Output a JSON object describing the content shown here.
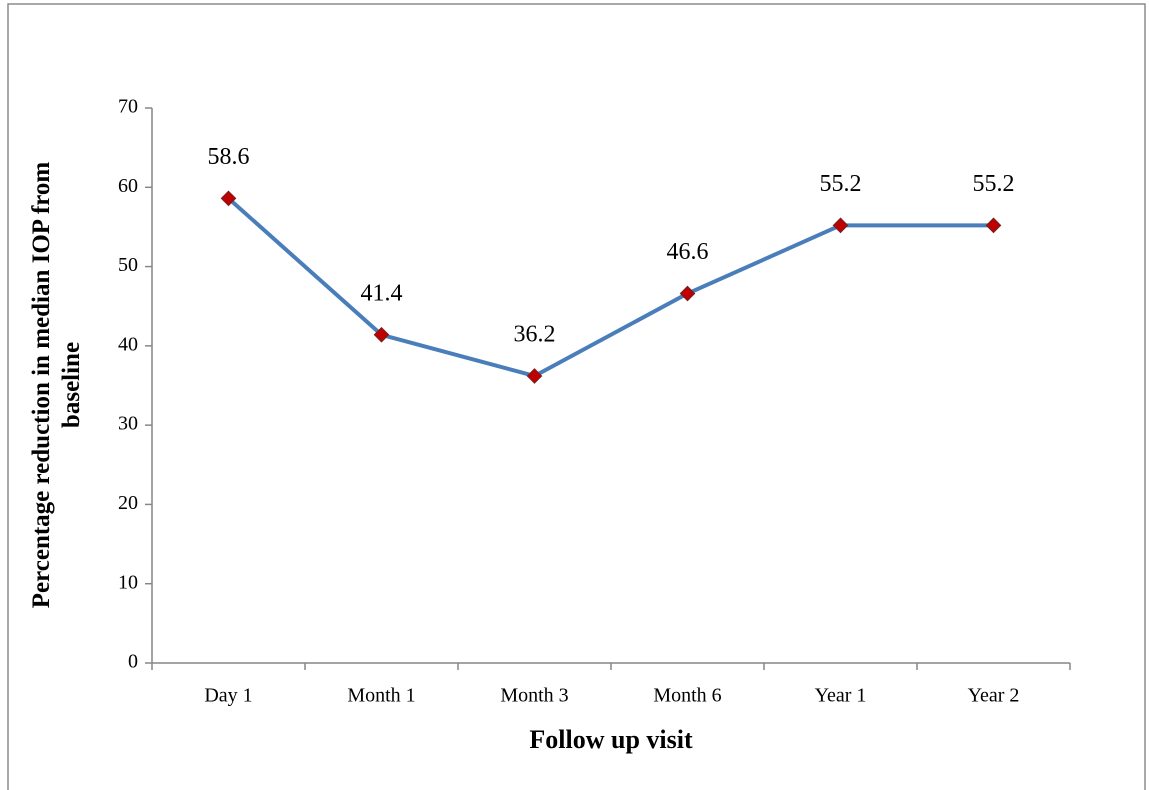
{
  "chart_data": {
    "type": "line",
    "x_label": "Follow up visit",
    "y_label": "Percentage reduction in median  IOP from baseline",
    "categories": [
      "Day 1",
      "Month 1",
      "Month 3",
      "Month 6",
      "Year 1",
      "Year 2"
    ],
    "values": [
      58.6,
      41.4,
      36.2,
      46.6,
      55.2,
      55.2
    ],
    "color": "#4a7ebb",
    "marker_color": "#c00000",
    "ylim": [
      0,
      70
    ],
    "yticks": [
      0,
      10,
      20,
      30,
      40,
      50,
      60,
      70
    ],
    "grid": false
  }
}
